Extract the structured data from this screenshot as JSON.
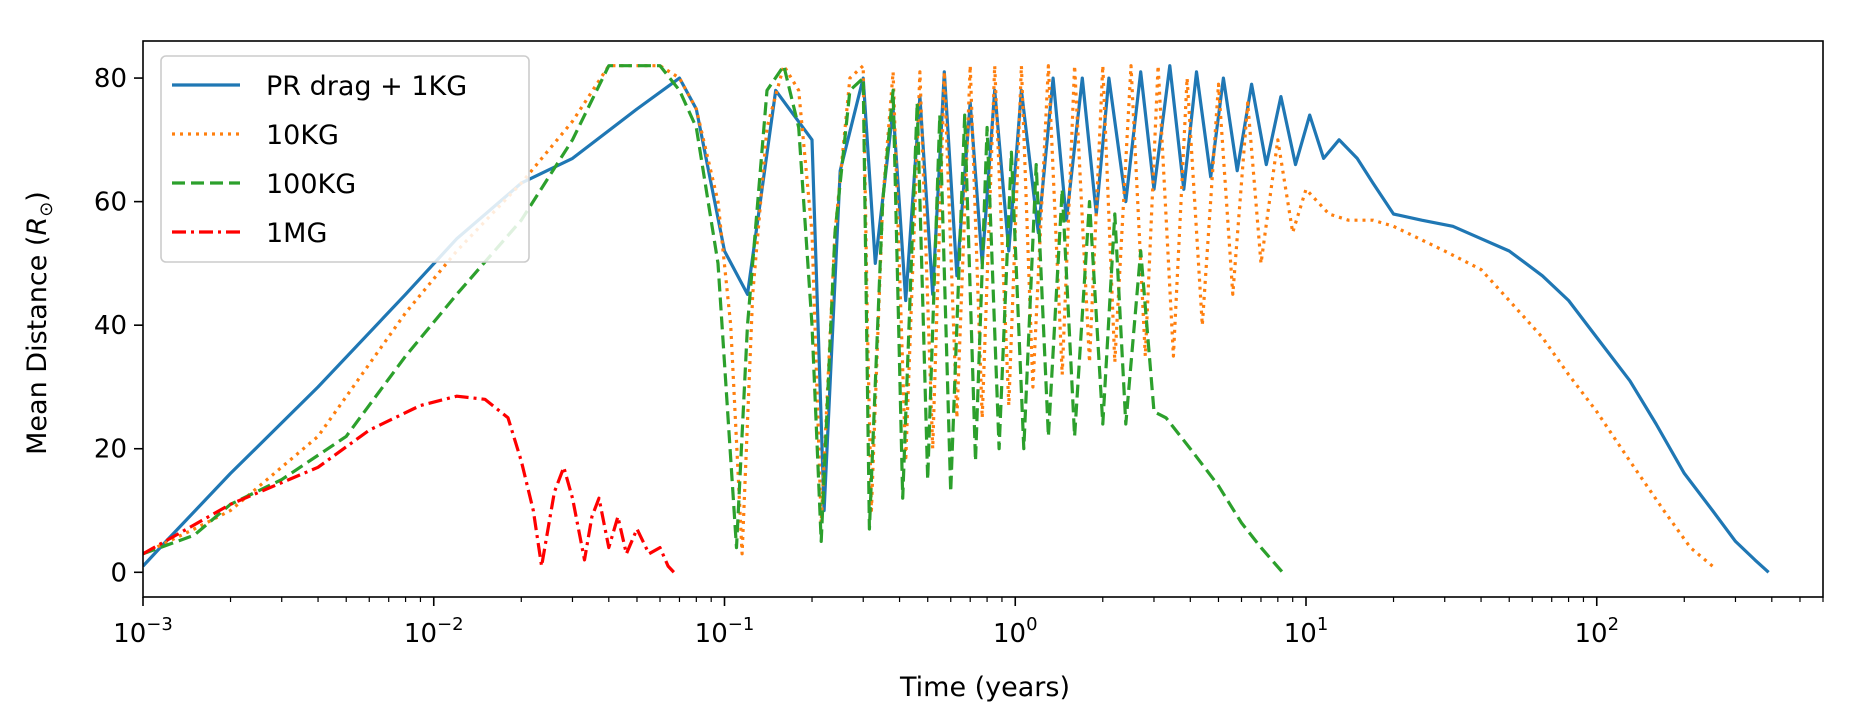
{
  "chart_data": {
    "type": "line",
    "title": "",
    "xlabel": "Time (years)",
    "ylabel": "Mean Distance (",
    "ylabel_symbol": "R",
    "ylabel_subscript": "⊙",
    "ylabel_close": ")",
    "xscale": "log",
    "xlim": [
      0.001,
      600
    ],
    "ylim": [
      -4,
      86
    ],
    "grid": false,
    "legend_position": "top-left",
    "x_ticks": [
      {
        "value": 0.001,
        "base": "10",
        "exp": "−3"
      },
      {
        "value": 0.01,
        "base": "10",
        "exp": "−2"
      },
      {
        "value": 0.1,
        "base": "10",
        "exp": "−1"
      },
      {
        "value": 1,
        "base": "10",
        "exp": "0"
      },
      {
        "value": 10,
        "base": "10",
        "exp": "1"
      },
      {
        "value": 100,
        "base": "10",
        "exp": "2"
      }
    ],
    "y_ticks": [
      {
        "value": 0,
        "label": "0"
      },
      {
        "value": 20,
        "label": "20"
      },
      {
        "value": 40,
        "label": "40"
      },
      {
        "value": 60,
        "label": "60"
      },
      {
        "value": 80,
        "label": "80"
      }
    ],
    "series": [
      {
        "name": "PR drag + 1KG",
        "color": "#1f77b4",
        "dash": "solid",
        "points": [
          [
            0.001,
            1
          ],
          [
            0.0012,
            5
          ],
          [
            0.002,
            16
          ],
          [
            0.004,
            30
          ],
          [
            0.008,
            45
          ],
          [
            0.012,
            54
          ],
          [
            0.02,
            63
          ],
          [
            0.03,
            67
          ],
          [
            0.05,
            75
          ],
          [
            0.07,
            80
          ],
          [
            0.08,
            75
          ],
          [
            0.1,
            52
          ],
          [
            0.12,
            45
          ],
          [
            0.15,
            78
          ],
          [
            0.2,
            70
          ],
          [
            0.22,
            10
          ],
          [
            0.25,
            65
          ],
          [
            0.3,
            80
          ],
          [
            0.33,
            50
          ],
          [
            0.38,
            75
          ],
          [
            0.42,
            44
          ],
          [
            0.47,
            77
          ],
          [
            0.52,
            45
          ],
          [
            0.57,
            81
          ],
          [
            0.63,
            48
          ],
          [
            0.7,
            76
          ],
          [
            0.77,
            50
          ],
          [
            0.85,
            78
          ],
          [
            0.95,
            52
          ],
          [
            1.05,
            78
          ],
          [
            1.2,
            55
          ],
          [
            1.35,
            80
          ],
          [
            1.5,
            57
          ],
          [
            1.7,
            80
          ],
          [
            1.9,
            58
          ],
          [
            2.1,
            80
          ],
          [
            2.4,
            60
          ],
          [
            2.7,
            81
          ],
          [
            3.0,
            62
          ],
          [
            3.4,
            82
          ],
          [
            3.8,
            62
          ],
          [
            4.2,
            81
          ],
          [
            4.7,
            64
          ],
          [
            5.2,
            80
          ],
          [
            5.8,
            65
          ],
          [
            6.5,
            79
          ],
          [
            7.3,
            66
          ],
          [
            8.2,
            77
          ],
          [
            9.2,
            66
          ],
          [
            10.3,
            74
          ],
          [
            11.5,
            67
          ],
          [
            13,
            70
          ],
          [
            15,
            67
          ],
          [
            17,
            63
          ],
          [
            20,
            58
          ],
          [
            25,
            57
          ],
          [
            32,
            56
          ],
          [
            40,
            54
          ],
          [
            50,
            52
          ],
          [
            65,
            48
          ],
          [
            80,
            44
          ],
          [
            100,
            38
          ],
          [
            130,
            31
          ],
          [
            160,
            24
          ],
          [
            200,
            16
          ],
          [
            250,
            10
          ],
          [
            300,
            5
          ],
          [
            350,
            2
          ],
          [
            390,
            0
          ]
        ]
      },
      {
        "name": "10KG",
        "color": "#ff7f0e",
        "dash": "dotted",
        "points": [
          [
            0.001,
            3
          ],
          [
            0.0015,
            7
          ],
          [
            0.002,
            10
          ],
          [
            0.004,
            22
          ],
          [
            0.008,
            42
          ],
          [
            0.012,
            52
          ],
          [
            0.02,
            63
          ],
          [
            0.03,
            73
          ],
          [
            0.04,
            82
          ],
          [
            0.06,
            82
          ],
          [
            0.07,
            80
          ],
          [
            0.08,
            75
          ],
          [
            0.095,
            60
          ],
          [
            0.105,
            40
          ],
          [
            0.115,
            3
          ],
          [
            0.125,
            45
          ],
          [
            0.14,
            72
          ],
          [
            0.16,
            82
          ],
          [
            0.18,
            78
          ],
          [
            0.2,
            55
          ],
          [
            0.215,
            8
          ],
          [
            0.24,
            55
          ],
          [
            0.27,
            80
          ],
          [
            0.3,
            82
          ],
          [
            0.31,
            40
          ],
          [
            0.32,
            10
          ],
          [
            0.35,
            60
          ],
          [
            0.38,
            81
          ],
          [
            0.42,
            18
          ],
          [
            0.47,
            81
          ],
          [
            0.52,
            20
          ],
          [
            0.57,
            81
          ],
          [
            0.63,
            25
          ],
          [
            0.7,
            82
          ],
          [
            0.77,
            25
          ],
          [
            0.85,
            82
          ],
          [
            0.95,
            27
          ],
          [
            1.05,
            82
          ],
          [
            1.15,
            30
          ],
          [
            1.3,
            82
          ],
          [
            1.45,
            32
          ],
          [
            1.6,
            82
          ],
          [
            1.8,
            34
          ],
          [
            2.0,
            82
          ],
          [
            2.2,
            34
          ],
          [
            2.5,
            82
          ],
          [
            2.8,
            35
          ],
          [
            3.1,
            82
          ],
          [
            3.5,
            35
          ],
          [
            3.9,
            80
          ],
          [
            4.4,
            40
          ],
          [
            5.0,
            79
          ],
          [
            5.6,
            45
          ],
          [
            6.3,
            76
          ],
          [
            7.0,
            50
          ],
          [
            8.0,
            70
          ],
          [
            9.0,
            55
          ],
          [
            10,
            62
          ],
          [
            12,
            58
          ],
          [
            14,
            57
          ],
          [
            17,
            57
          ],
          [
            20,
            56
          ],
          [
            30,
            52
          ],
          [
            40,
            49
          ],
          [
            50,
            44
          ],
          [
            65,
            38
          ],
          [
            80,
            32
          ],
          [
            100,
            26
          ],
          [
            130,
            18
          ],
          [
            170,
            10
          ],
          [
            210,
            4
          ],
          [
            250,
            1
          ]
        ]
      },
      {
        "name": "100KG",
        "color": "#2ca02c",
        "dash": "dashed",
        "points": [
          [
            0.001,
            3
          ],
          [
            0.0015,
            6
          ],
          [
            0.002,
            11
          ],
          [
            0.003,
            15
          ],
          [
            0.005,
            22
          ],
          [
            0.008,
            35
          ],
          [
            0.012,
            45
          ],
          [
            0.02,
            57
          ],
          [
            0.03,
            70
          ],
          [
            0.04,
            82
          ],
          [
            0.06,
            82
          ],
          [
            0.07,
            78
          ],
          [
            0.08,
            72
          ],
          [
            0.095,
            50
          ],
          [
            0.11,
            4
          ],
          [
            0.12,
            40
          ],
          [
            0.14,
            78
          ],
          [
            0.16,
            82
          ],
          [
            0.18,
            72
          ],
          [
            0.2,
            40
          ],
          [
            0.215,
            5
          ],
          [
            0.24,
            55
          ],
          [
            0.27,
            78
          ],
          [
            0.3,
            80
          ],
          [
            0.315,
            7
          ],
          [
            0.35,
            60
          ],
          [
            0.38,
            78
          ],
          [
            0.41,
            12
          ],
          [
            0.46,
            76
          ],
          [
            0.5,
            15
          ],
          [
            0.55,
            74
          ],
          [
            0.6,
            13
          ],
          [
            0.67,
            74
          ],
          [
            0.73,
            18
          ],
          [
            0.8,
            72
          ],
          [
            0.88,
            20
          ],
          [
            0.97,
            68
          ],
          [
            1.07,
            20
          ],
          [
            1.18,
            66
          ],
          [
            1.3,
            22
          ],
          [
            1.45,
            62
          ],
          [
            1.6,
            22
          ],
          [
            1.8,
            60
          ],
          [
            2.0,
            24
          ],
          [
            2.2,
            58
          ],
          [
            2.4,
            24
          ],
          [
            2.7,
            52
          ],
          [
            3.0,
            26
          ],
          [
            3.3,
            25
          ],
          [
            4,
            20
          ],
          [
            5,
            14
          ],
          [
            6,
            8
          ],
          [
            7,
            4
          ],
          [
            8.3,
            0
          ]
        ]
      },
      {
        "name": "1MG",
        "color": "#ff0000",
        "dash": "dashdot",
        "points": [
          [
            0.001,
            3
          ],
          [
            0.002,
            11
          ],
          [
            0.004,
            17
          ],
          [
            0.006,
            23
          ],
          [
            0.009,
            27
          ],
          [
            0.012,
            28.5
          ],
          [
            0.015,
            28
          ],
          [
            0.018,
            25
          ],
          [
            0.02,
            18
          ],
          [
            0.022,
            10
          ],
          [
            0.0235,
            1
          ],
          [
            0.026,
            13
          ],
          [
            0.028,
            17
          ],
          [
            0.03,
            12
          ],
          [
            0.033,
            2
          ],
          [
            0.035,
            9
          ],
          [
            0.037,
            12
          ],
          [
            0.04,
            4
          ],
          [
            0.043,
            9
          ],
          [
            0.046,
            3
          ],
          [
            0.05,
            7
          ],
          [
            0.055,
            3
          ],
          [
            0.06,
            4
          ],
          [
            0.064,
            1
          ],
          [
            0.067,
            0
          ]
        ]
      }
    ]
  }
}
